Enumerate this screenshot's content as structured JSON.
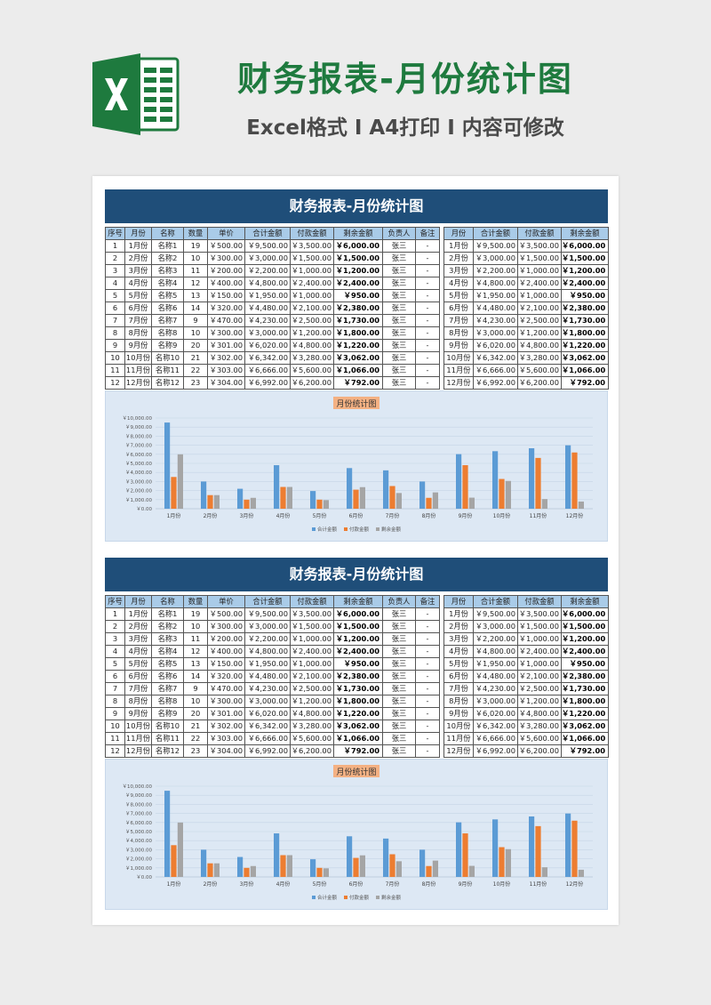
{
  "header": {
    "title": "财务报表-月份统计图",
    "subtitle": "Excel格式 I A4打印 I 内容可修改"
  },
  "sheet": {
    "banner_title": "财务报表-月份统计图",
    "left_table": {
      "columns": [
        "序号",
        "月份",
        "名称",
        "数量",
        "单价",
        "合计金额",
        "付款金额",
        "剩余金额",
        "负责人",
        "备注"
      ],
      "rows": [
        [
          "1",
          "1月份",
          "名称1",
          "19",
          "￥500.00",
          "￥9,500.00",
          "￥3,500.00",
          "￥6,000.00",
          "张三",
          "-"
        ],
        [
          "2",
          "2月份",
          "名称2",
          "10",
          "￥300.00",
          "￥3,000.00",
          "￥1,500.00",
          "￥1,500.00",
          "张三",
          "-"
        ],
        [
          "3",
          "3月份",
          "名称3",
          "11",
          "￥200.00",
          "￥2,200.00",
          "￥1,000.00",
          "￥1,200.00",
          "张三",
          "-"
        ],
        [
          "4",
          "4月份",
          "名称4",
          "12",
          "￥400.00",
          "￥4,800.00",
          "￥2,400.00",
          "￥2,400.00",
          "张三",
          "-"
        ],
        [
          "5",
          "5月份",
          "名称5",
          "13",
          "￥150.00",
          "￥1,950.00",
          "￥1,000.00",
          "￥950.00",
          "张三",
          "-"
        ],
        [
          "6",
          "6月份",
          "名称6",
          "14",
          "￥320.00",
          "￥4,480.00",
          "￥2,100.00",
          "￥2,380.00",
          "张三",
          "-"
        ],
        [
          "7",
          "7月份",
          "名称7",
          "9",
          "￥470.00",
          "￥4,230.00",
          "￥2,500.00",
          "￥1,730.00",
          "张三",
          "-"
        ],
        [
          "8",
          "8月份",
          "名称8",
          "10",
          "￥300.00",
          "￥3,000.00",
          "￥1,200.00",
          "￥1,800.00",
          "张三",
          "-"
        ],
        [
          "9",
          "9月份",
          "名称9",
          "20",
          "￥301.00",
          "￥6,020.00",
          "￥4,800.00",
          "￥1,220.00",
          "张三",
          "-"
        ],
        [
          "10",
          "10月份",
          "名称10",
          "21",
          "￥302.00",
          "￥6,342.00",
          "￥3,280.00",
          "￥3,062.00",
          "张三",
          "-"
        ],
        [
          "11",
          "11月份",
          "名称11",
          "22",
          "￥303.00",
          "￥6,666.00",
          "￥5,600.00",
          "￥1,066.00",
          "张三",
          "-"
        ],
        [
          "12",
          "12月份",
          "名称12",
          "23",
          "￥304.00",
          "￥6,992.00",
          "￥6,200.00",
          "￥792.00",
          "张三",
          "-"
        ]
      ]
    },
    "right_table": {
      "columns": [
        "月份",
        "合计金额",
        "付款金额",
        "剩余金额"
      ],
      "rows": [
        [
          "1月份",
          "￥9,500.00",
          "￥3,500.00",
          "￥6,000.00"
        ],
        [
          "2月份",
          "￥3,000.00",
          "￥1,500.00",
          "￥1,500.00"
        ],
        [
          "3月份",
          "￥2,200.00",
          "￥1,000.00",
          "￥1,200.00"
        ],
        [
          "4月份",
          "￥4,800.00",
          "￥2,400.00",
          "￥2,400.00"
        ],
        [
          "5月份",
          "￥1,950.00",
          "￥1,000.00",
          "￥950.00"
        ],
        [
          "6月份",
          "￥4,480.00",
          "￥2,100.00",
          "￥2,380.00"
        ],
        [
          "7月份",
          "￥4,230.00",
          "￥2,500.00",
          "￥1,730.00"
        ],
        [
          "8月份",
          "￥3,000.00",
          "￥1,200.00",
          "￥1,800.00"
        ],
        [
          "9月份",
          "￥6,020.00",
          "￥4,800.00",
          "￥1,220.00"
        ],
        [
          "10月份",
          "￥6,342.00",
          "￥3,280.00",
          "￥3,062.00"
        ],
        [
          "11月份",
          "￥6,666.00",
          "￥5,600.00",
          "￥1,066.00"
        ],
        [
          "12月份",
          "￥6,992.00",
          "￥6,200.00",
          "￥792.00"
        ]
      ]
    }
  },
  "chart_data": {
    "type": "bar",
    "title": "月份统计图",
    "categories": [
      "1月份",
      "2月份",
      "3月份",
      "4月份",
      "5月份",
      "6月份",
      "7月份",
      "8月份",
      "9月份",
      "10月份",
      "11月份",
      "12月份"
    ],
    "series": [
      {
        "name": "合计金额",
        "color": "#5b9bd5",
        "values": [
          9500,
          3000,
          2200,
          4800,
          1950,
          4480,
          4230,
          3000,
          6020,
          6342,
          6666,
          6992
        ]
      },
      {
        "name": "付款金额",
        "color": "#ed7d31",
        "values": [
          3500,
          1500,
          1000,
          2400,
          1000,
          2100,
          2500,
          1200,
          4800,
          3280,
          5600,
          6200
        ]
      },
      {
        "name": "剩余金额",
        "color": "#a5a5a5",
        "values": [
          6000,
          1500,
          1200,
          2400,
          950,
          2380,
          1730,
          1800,
          1220,
          3062,
          1066,
          792
        ]
      }
    ],
    "ytick_labels": [
      "￥0.00",
      "￥1,000.00",
      "￥2,000.00",
      "￥3,000.00",
      "￥4,000.00",
      "￥5,000.00",
      "￥6,000.00",
      "￥7,000.00",
      "￥8,000.00",
      "￥9,000.00",
      "￥10,000.00"
    ],
    "ylim": [
      0,
      10000
    ],
    "grid": true,
    "legend": "bottom",
    "title_bg": "#f4b183"
  },
  "colors": {
    "brand_green": "#1e7a3e",
    "banner_blue": "#1f4e79",
    "header_cell": "#a9cbe8",
    "chart_bg": "#dde8f4"
  }
}
